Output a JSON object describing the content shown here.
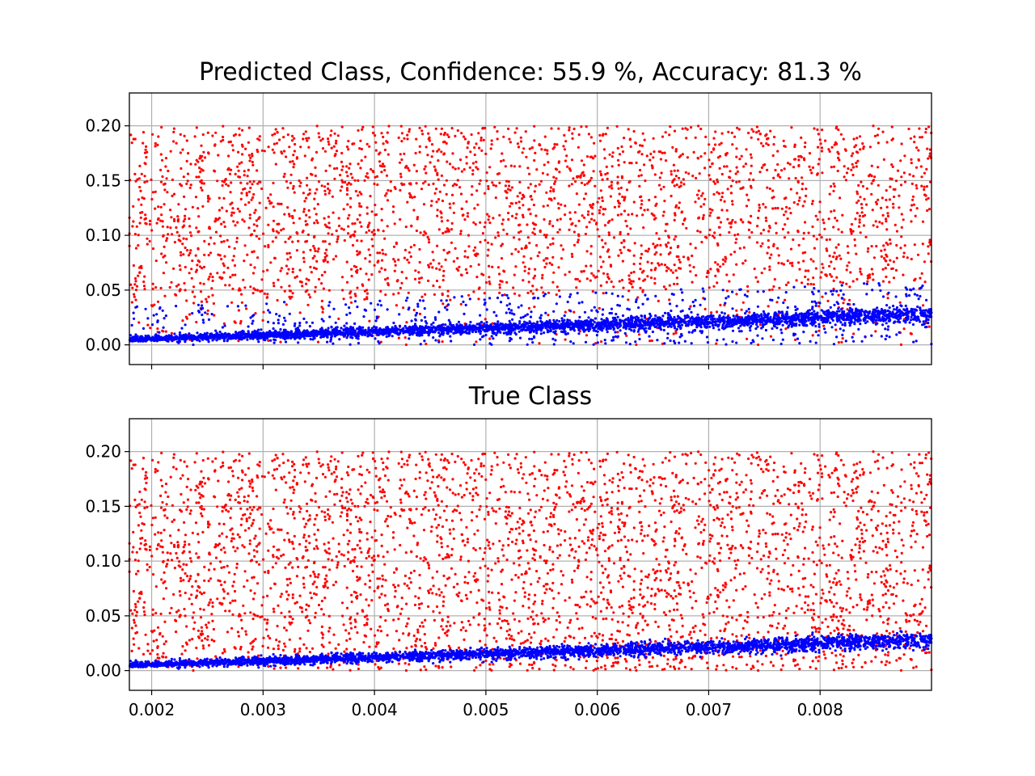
{
  "figure": {
    "background": "#ffffff",
    "grid_color": "#b0b0b0",
    "colors": {
      "class_a": "#ff0000",
      "class_b": "#0000ff"
    }
  },
  "chart_data": [
    {
      "type": "scatter",
      "title": "Predicted Class, Confidence: 55.9 %, Accuracy: 81.3 %",
      "xlabel": "",
      "ylabel": "",
      "xlim": [
        0.0018,
        0.009
      ],
      "ylim": [
        -0.018,
        0.23
      ],
      "grid": true,
      "legend": "none",
      "x_ticks_labeled": false,
      "x_ticks": [
        0.002,
        0.003,
        0.004,
        0.005,
        0.006,
        0.007,
        0.008
      ],
      "x_tick_labels": [
        "0.002",
        "0.003",
        "0.004",
        "0.005",
        "0.006",
        "0.007",
        "0.008"
      ],
      "y_ticks": [
        0.0,
        0.05,
        0.1,
        0.15,
        0.2
      ],
      "y_tick_labels": [
        "0.00",
        "0.05",
        "0.10",
        "0.15",
        "0.20"
      ],
      "series": [
        {
          "color": "#ff0000",
          "distribution": "uniform",
          "n": 3500,
          "x_range": [
            0.0018,
            0.009
          ],
          "y_range": [
            0.0,
            0.2
          ],
          "sample_points": [
            [
              0.0019,
              0.07
            ],
            [
              0.0025,
              0.19
            ],
            [
              0.003,
              0.15
            ],
            [
              0.0035,
              0.12
            ],
            [
              0.004,
              0.17
            ],
            [
              0.0045,
              0.05
            ],
            [
              0.005,
              0.18
            ],
            [
              0.0055,
              0.1
            ],
            [
              0.006,
              0.14
            ],
            [
              0.0065,
              0.08
            ],
            [
              0.007,
              0.16
            ],
            [
              0.0075,
              0.12
            ],
            [
              0.008,
              0.19
            ],
            [
              0.0085,
              0.06
            ],
            [
              0.0089,
              0.15
            ]
          ]
        },
        {
          "color": "#0000ff",
          "distribution": "linear band",
          "n": 3500,
          "x_range": [
            0.0018,
            0.009
          ],
          "y_center_at_xmin": 0.005,
          "y_center_at_xmax": 0.028,
          "band_width": 0.008,
          "sample_points": [
            [
              0.002,
              0.006
            ],
            [
              0.003,
              0.009
            ],
            [
              0.004,
              0.012
            ],
            [
              0.005,
              0.015
            ],
            [
              0.006,
              0.018
            ],
            [
              0.007,
              0.021
            ],
            [
              0.008,
              0.024
            ],
            [
              0.009,
              0.028
            ]
          ]
        }
      ],
      "misclassified_blue_as_red_zone": {
        "description_values": "blue points scattered above band",
        "y_range": [
          0.01,
          0.05
        ]
      }
    },
    {
      "type": "scatter",
      "title": "True Class",
      "xlabel": "",
      "ylabel": "",
      "xlim": [
        0.0018,
        0.009
      ],
      "ylim": [
        -0.018,
        0.23
      ],
      "grid": true,
      "legend": "none",
      "x_ticks_labeled": true,
      "x_ticks": [
        0.002,
        0.003,
        0.004,
        0.005,
        0.006,
        0.007,
        0.008
      ],
      "x_tick_labels": [
        "0.002",
        "0.003",
        "0.004",
        "0.005",
        "0.006",
        "0.007",
        "0.008"
      ],
      "y_ticks": [
        0.0,
        0.05,
        0.1,
        0.15,
        0.2
      ],
      "y_tick_labels": [
        "0.00",
        "0.05",
        "0.10",
        "0.15",
        "0.20"
      ],
      "series": [
        {
          "color": "#ff0000",
          "distribution": "uniform",
          "n": 3500,
          "x_range": [
            0.0018,
            0.009
          ],
          "y_range": [
            0.0,
            0.2
          ],
          "sample_points": [
            [
              0.0019,
              0.07
            ],
            [
              0.0025,
              0.19
            ],
            [
              0.003,
              0.15
            ],
            [
              0.0035,
              0.12
            ],
            [
              0.004,
              0.17
            ],
            [
              0.0045,
              0.05
            ],
            [
              0.005,
              0.18
            ],
            [
              0.0055,
              0.1
            ],
            [
              0.006,
              0.14
            ],
            [
              0.0065,
              0.08
            ],
            [
              0.007,
              0.16
            ],
            [
              0.0075,
              0.12
            ],
            [
              0.008,
              0.19
            ],
            [
              0.0085,
              0.06
            ],
            [
              0.0089,
              0.15
            ]
          ]
        },
        {
          "color": "#0000ff",
          "distribution": "linear band",
          "n": 3500,
          "x_range": [
            0.0018,
            0.009
          ],
          "y_center_at_xmin": 0.005,
          "y_center_at_xmax": 0.028,
          "band_width": 0.008,
          "sample_points": [
            [
              0.002,
              0.006
            ],
            [
              0.003,
              0.009
            ],
            [
              0.004,
              0.012
            ],
            [
              0.005,
              0.015
            ],
            [
              0.006,
              0.018
            ],
            [
              0.007,
              0.021
            ],
            [
              0.008,
              0.024
            ],
            [
              0.009,
              0.028
            ]
          ]
        }
      ]
    }
  ]
}
